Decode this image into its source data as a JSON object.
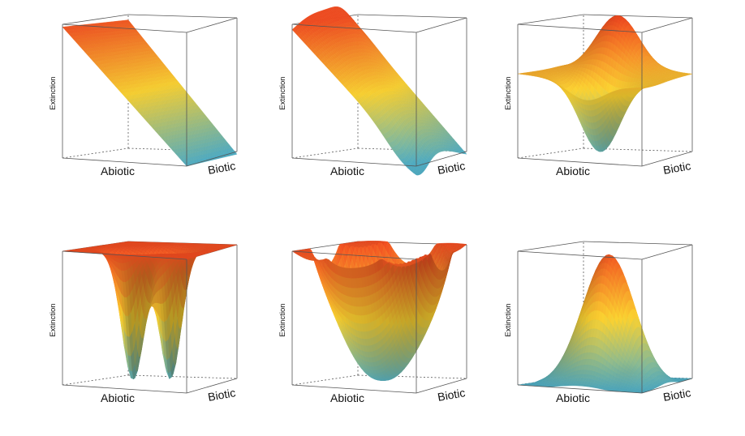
{
  "chart_data": [
    {
      "type": "surface",
      "surface": "plane-descending",
      "xlabel": "Abiotic",
      "ylabel": "Biotic",
      "zlabel": "Extinction",
      "grid": false
    },
    {
      "type": "surface",
      "surface": "plane-with-ripple",
      "xlabel": "Abiotic",
      "ylabel": "Biotic",
      "zlabel": "Extinction",
      "grid": false
    },
    {
      "type": "surface",
      "surface": "saddle-ridge-valley",
      "xlabel": "Abiotic",
      "ylabel": "Biotic",
      "zlabel": "Extinction",
      "grid": false
    },
    {
      "type": "surface",
      "surface": "flat-with-two-wells",
      "xlabel": "Abiotic",
      "ylabel": "Biotic",
      "zlabel": "Extinction",
      "grid": false
    },
    {
      "type": "surface",
      "surface": "bowl",
      "xlabel": "Abiotic",
      "ylabel": "Biotic",
      "zlabel": "Extinction",
      "grid": false
    },
    {
      "type": "surface",
      "surface": "dome",
      "xlabel": "Abiotic",
      "ylabel": "Biotic",
      "zlabel": "Extinction",
      "grid": false
    }
  ],
  "colors": {
    "high": "#e0471e",
    "mid": "#e8c22d",
    "low": "#4aa1b6",
    "box": "#555555"
  }
}
